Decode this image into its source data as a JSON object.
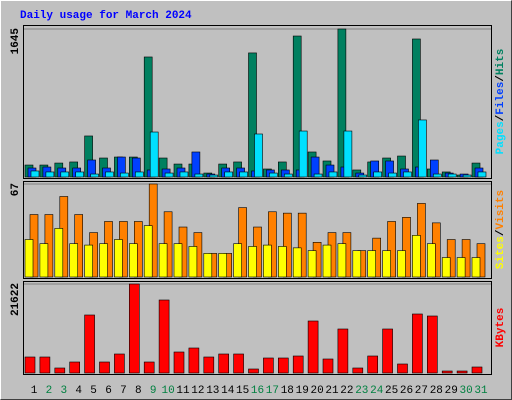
{
  "chart_data": [
    {
      "type": "bar",
      "title": "Daily usage for March 2024",
      "legend_separator": "/",
      "ylim": [
        0,
        1645
      ],
      "yticks": [
        1645
      ],
      "series": [
        {
          "name": "Hits",
          "color": "#008060",
          "values": [
            133,
            133,
            155,
            167,
            456,
            211,
            222,
            222,
            1334,
            211,
            144,
            144,
            44,
            144,
            167,
            1379,
            89,
            167,
            1567,
            278,
            178,
            1645,
            78,
            167,
            211,
            233,
            1534,
            89,
            56,
            22,
            155
          ]
        },
        {
          "name": "Files",
          "color": "#0040ff",
          "values": [
            100,
            111,
            100,
            100,
            189,
            100,
            222,
            211,
            78,
            89,
            100,
            278,
            33,
            100,
            100,
            67,
            78,
            78,
            78,
            222,
            133,
            111,
            44,
            178,
            178,
            89,
            111,
            189,
            44,
            33,
            100
          ]
        },
        {
          "name": "Pages",
          "color": "#00e0ff",
          "values": [
            67,
            56,
            56,
            56,
            33,
            56,
            44,
            56,
            500,
            44,
            56,
            33,
            22,
            56,
            56,
            478,
            44,
            33,
            511,
            33,
            56,
            511,
            22,
            56,
            44,
            56,
            634,
            33,
            33,
            22,
            56
          ]
        }
      ]
    },
    {
      "type": "bar",
      "legend_separator": "/",
      "ylim": [
        0,
        67
      ],
      "yticks": [
        67
      ],
      "series": [
        {
          "name": "Visits",
          "color": "#ff8000",
          "values": [
            45,
            45,
            58,
            45,
            32,
            40,
            40,
            40,
            67,
            47,
            36,
            32,
            17,
            17,
            50,
            36,
            47,
            46,
            46,
            25,
            32,
            32,
            19,
            28,
            40,
            43,
            53,
            39,
            27,
            27,
            24
          ]
        },
        {
          "name": "Sites",
          "color": "#ffff00",
          "values": [
            27,
            24,
            35,
            24,
            23,
            24,
            27,
            24,
            37,
            24,
            24,
            22,
            17,
            17,
            24,
            22,
            23,
            22,
            21,
            19,
            23,
            24,
            19,
            19,
            19,
            19,
            30,
            24,
            14,
            14,
            14
          ]
        }
      ]
    },
    {
      "type": "bar",
      "ylim": [
        0,
        21622
      ],
      "yticks": [
        21622
      ],
      "categories": [
        "1",
        "2",
        "3",
        "4",
        "5",
        "6",
        "7",
        "8",
        "9",
        "10",
        "11",
        "12",
        "13",
        "14",
        "15",
        "16",
        "17",
        "18",
        "19",
        "20",
        "21",
        "22",
        "23",
        "24",
        "25",
        "26",
        "27",
        "28",
        "29",
        "30",
        "31"
      ],
      "category_colors": [
        "#000000",
        "#008040",
        "#008040",
        "#000000",
        "#000000",
        "#000000",
        "#000000",
        "#000000",
        "#008040",
        "#008040",
        "#000000",
        "#000000",
        "#000000",
        "#000000",
        "#000000",
        "#008040",
        "#008040",
        "#000000",
        "#000000",
        "#000000",
        "#000000",
        "#000000",
        "#008040",
        "#008040",
        "#000000",
        "#000000",
        "#000000",
        "#000000",
        "#000000",
        "#008040",
        "#008040"
      ],
      "series": [
        {
          "name": "KBytes",
          "color": "#ff0000",
          "values": [
            3887,
            3887,
            1215,
            2672,
            14091,
            2672,
            4616,
            21622,
            2672,
            17735,
            5102,
            6074,
            3887,
            4616,
            4616,
            972,
            3644,
            3644,
            4130,
            12633,
            3401,
            10689,
            1215,
            4130,
            10689,
            2186,
            14334,
            13848,
            486,
            486,
            1458
          ]
        }
      ]
    }
  ]
}
